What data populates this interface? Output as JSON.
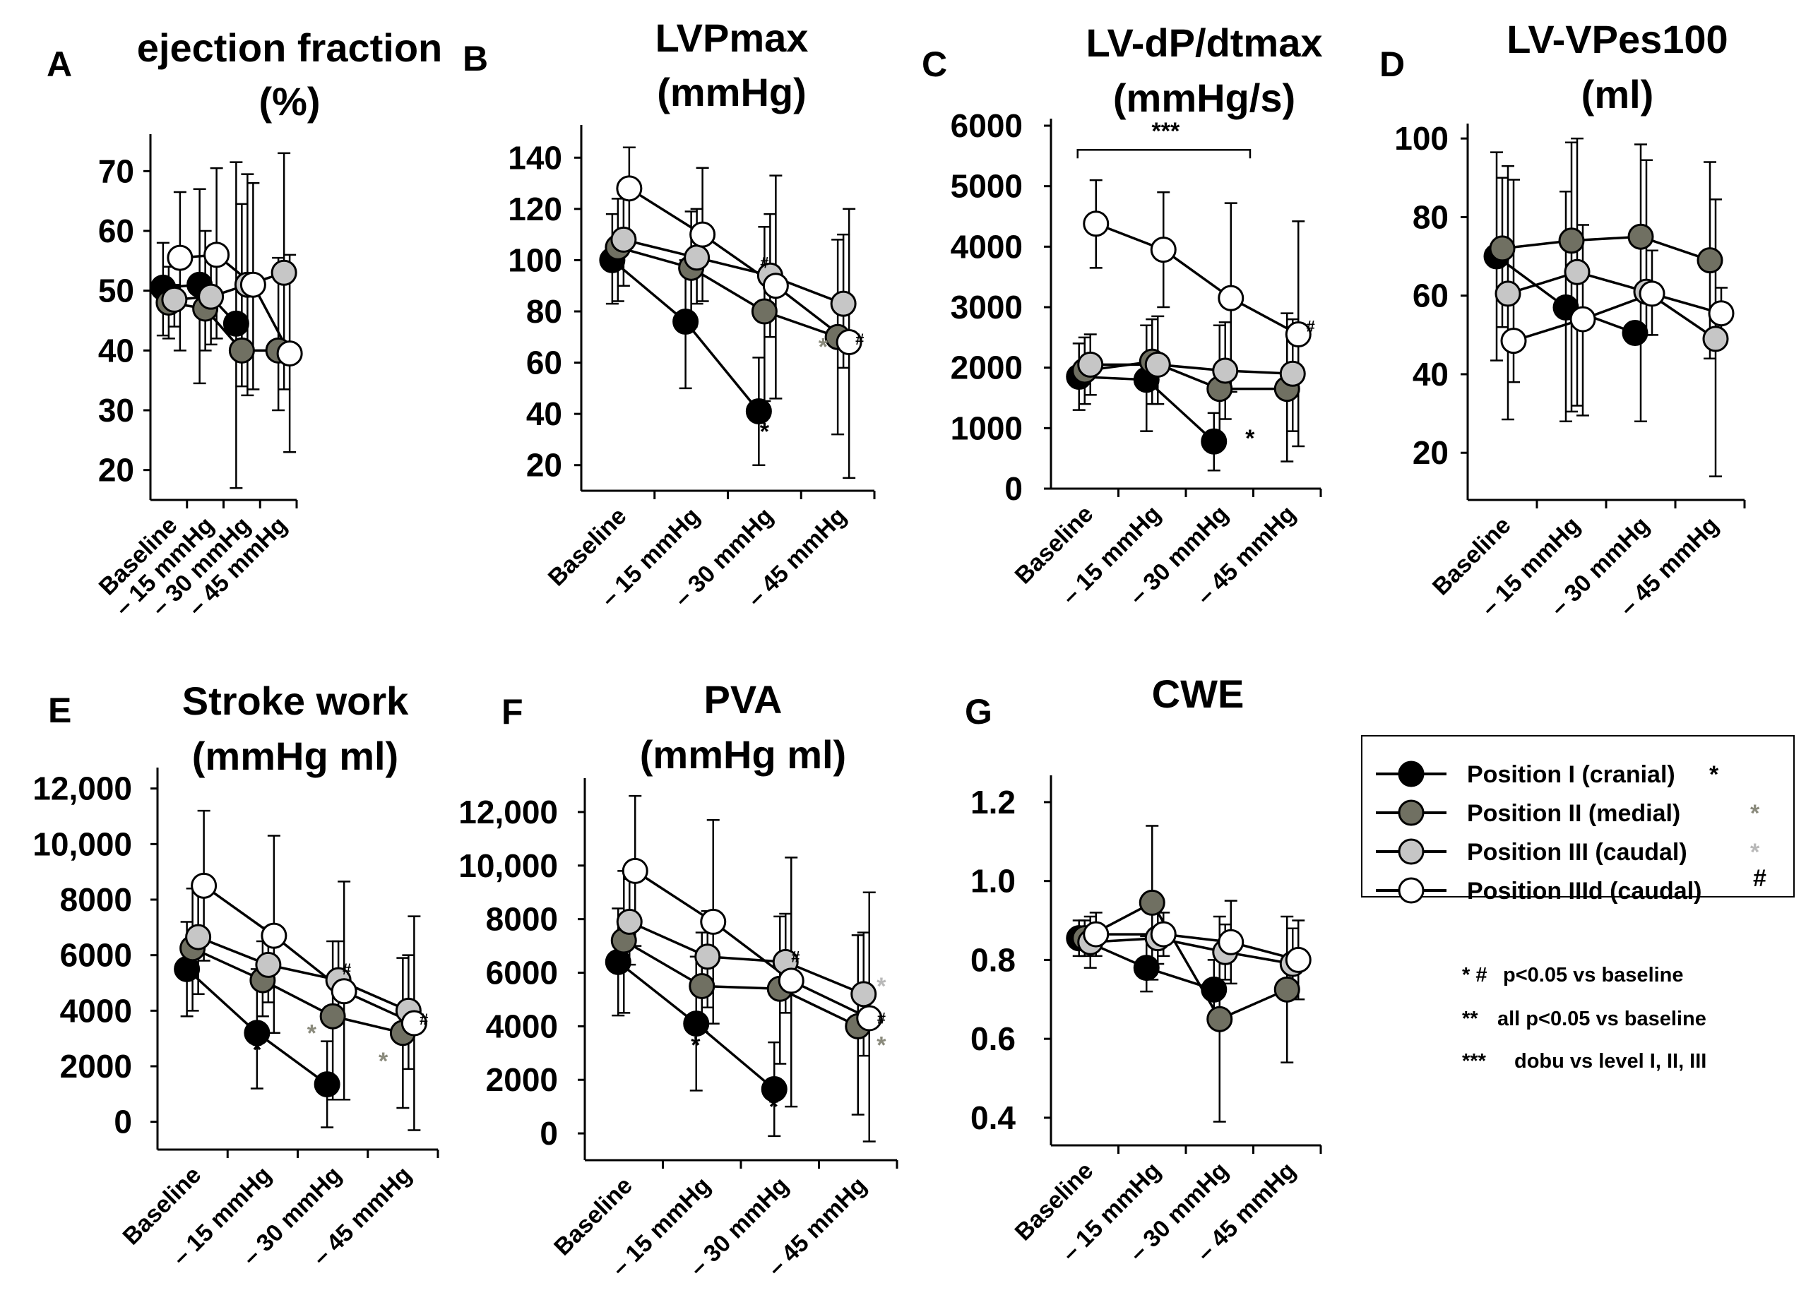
{
  "figure_legend": {
    "entries": [
      {
        "label": "Position I (cranial)",
        "symbol": "*",
        "fill": "#000000",
        "symbol_color": "#000000"
      },
      {
        "label": "Position II (medial)",
        "symbol": "*",
        "fill": "#707062",
        "symbol_color": "#8a8a7c"
      },
      {
        "label": "Position III (caudal)",
        "symbol": "*",
        "fill": "#c6c6c6",
        "symbol_color": "#b9b9b9"
      },
      {
        "label": "Position IIId (caudal)",
        "symbol": "#",
        "fill": "#ffffff",
        "symbol_color": "#000000"
      }
    ],
    "notes": [
      {
        "marker": "* #",
        "text": "p<0.05 vs baseline"
      },
      {
        "marker": "**",
        "text": "all p<0.05 vs baseline"
      },
      {
        "marker": "***",
        "text": "dobu vs level I, II, III"
      }
    ]
  },
  "chart_data": [
    {
      "panel": "A",
      "type": "line",
      "title": [
        "ejection fraction",
        "(%)"
      ],
      "categories": [
        "Baseline",
        "– 15 mmHg",
        "– 30 mmHg",
        "– 45 mmHg"
      ],
      "ylim": [
        15,
        75
      ],
      "yticks": [
        "70",
        "60",
        "50",
        "40",
        "30",
        "20"
      ],
      "ytick_values": [
        70,
        60,
        50,
        40,
        30,
        20
      ],
      "series": [
        {
          "name": "Position I (cranial)",
          "values": [
            50.5,
            51,
            44.5,
            null
          ],
          "err_hi": [
            58,
            67,
            71.5,
            null
          ],
          "err_lo": [
            42.5,
            34.5,
            17,
            null
          ]
        },
        {
          "name": "Position II (medial)",
          "values": [
            48,
            47,
            40,
            40
          ],
          "err_hi": [
            54,
            60,
            64.5,
            55.5
          ],
          "err_lo": [
            42,
            40,
            34,
            30
          ]
        },
        {
          "name": "Position III (caudal)",
          "values": [
            48.5,
            49,
            51,
            53
          ],
          "err_hi": [
            51,
            57,
            69.5,
            73
          ],
          "err_lo": [
            44,
            41,
            32.5,
            33.5
          ]
        },
        {
          "name": "Position IIId (caudal)",
          "values": [
            55.5,
            56,
            51,
            39.5
          ],
          "err_hi": [
            66.5,
            70.5,
            68,
            56
          ],
          "err_lo": [
            40,
            42,
            33.5,
            23
          ]
        }
      ],
      "annotations": []
    },
    {
      "panel": "B",
      "type": "line",
      "title": [
        "LVPmax",
        "(mmHg)"
      ],
      "categories": [
        "Baseline",
        "– 15 mmHg",
        "– 30 mmHg",
        "– 45 mmHg"
      ],
      "ylim": [
        10,
        150
      ],
      "yticks": [
        "140",
        "120",
        "100",
        "80",
        "60",
        "40",
        "20"
      ],
      "ytick_values": [
        140,
        120,
        100,
        80,
        60,
        40,
        20
      ],
      "series": [
        {
          "name": "Position I (cranial)",
          "values": [
            100,
            76,
            41,
            null
          ],
          "err_hi": [
            118,
            100,
            62,
            null
          ],
          "err_lo": [
            83,
            50,
            20,
            null
          ]
        },
        {
          "name": "Position II (medial)",
          "values": [
            105,
            97,
            80,
            70
          ],
          "err_hi": [
            124,
            119,
            113,
            108
          ],
          "err_lo": [
            84,
            74,
            45,
            32
          ]
        },
        {
          "name": "Position III (caudal)",
          "values": [
            108,
            101,
            94,
            83
          ],
          "err_hi": [
            126,
            120,
            118,
            110
          ],
          "err_lo": [
            90,
            83,
            70,
            58
          ]
        },
        {
          "name": "Position IIId (caudal)",
          "values": [
            128,
            110,
            90,
            68
          ],
          "err_hi": [
            144,
            136,
            133,
            120
          ],
          "err_lo": [
            110,
            84,
            46,
            15
          ]
        }
      ],
      "annotations": [
        {
          "text": "*",
          "color": "#000000",
          "x": 2,
          "y": 30
        },
        {
          "text": "#",
          "color": "#000000",
          "x": 2,
          "y": 97
        },
        {
          "text": "*",
          "color": "#8a8a7c",
          "x": 2.8,
          "y": 63
        },
        {
          "text": "#",
          "color": "#000000",
          "x": 3.3,
          "y": 67
        }
      ]
    },
    {
      "panel": "C",
      "type": "line",
      "title": [
        "LV-dP/dtmax",
        "(mmHg/s)"
      ],
      "categories": [
        "Baseline",
        "– 15 mmHg",
        "– 30 mmHg",
        "– 45 mmHg"
      ],
      "ylim": [
        0,
        6000
      ],
      "yticks": [
        "6000",
        "5000",
        "4000",
        "3000",
        "2000",
        "1000",
        "0"
      ],
      "ytick_values": [
        6000,
        5000,
        4000,
        3000,
        2000,
        1000,
        0
      ],
      "series": [
        {
          "name": "Position I (cranial)",
          "values": [
            1850,
            1800,
            780,
            null
          ],
          "err_hi": [
            2400,
            2700,
            1250,
            null
          ],
          "err_lo": [
            1300,
            950,
            300,
            null
          ]
        },
        {
          "name": "Position II (medial)",
          "values": [
            1950,
            2100,
            1650,
            1650
          ],
          "err_hi": [
            2500,
            2800,
            2700,
            2900
          ],
          "err_lo": [
            1400,
            1400,
            700,
            450
          ]
        },
        {
          "name": "Position III (caudal)",
          "values": [
            2050,
            2050,
            1950,
            1900
          ],
          "err_hi": [
            2550,
            2850,
            2750,
            2800
          ],
          "err_lo": [
            1550,
            1400,
            1150,
            950
          ]
        },
        {
          "name": "Position IIId (caudal)",
          "values": [
            4380,
            3950,
            3150,
            2550
          ],
          "err_hi": [
            5100,
            4900,
            4720,
            4420
          ],
          "err_lo": [
            3650,
            3000,
            1600,
            700
          ]
        }
      ],
      "annotations": [
        {
          "text": "*",
          "color": "#000000",
          "x": 2.45,
          "y": 700
        },
        {
          "text": "#",
          "color": "#000000",
          "x": 3.35,
          "y": 2600
        },
        {
          "text": "***",
          "color": "#000000",
          "x": 1.2,
          "y": 5780
        }
      ],
      "bracket": {
        "from": 0.0,
        "to": 2.4,
        "y": 5600
      }
    },
    {
      "panel": "D",
      "type": "line",
      "title": [
        "LV-VPes100",
        "(ml)"
      ],
      "categories": [
        "Baseline",
        "– 15 mmHg",
        "– 30 mmHg",
        "– 45 mmHg"
      ],
      "ylim": [
        8,
        102
      ],
      "yticks": [
        "100",
        "80",
        "60",
        "40",
        "20"
      ],
      "ytick_values": [
        100,
        80,
        60,
        40,
        20
      ],
      "series": [
        {
          "name": "Position I (cranial)",
          "values": [
            70,
            57,
            50.5,
            null
          ],
          "err_hi": [
            96.5,
            86.5,
            null,
            null
          ],
          "err_lo": [
            43.5,
            28,
            null,
            null
          ]
        },
        {
          "name": "Position II (medial)",
          "values": [
            72,
            74,
            75,
            69
          ],
          "err_hi": [
            90,
            99,
            98.5,
            94
          ],
          "err_lo": [
            52,
            30.5,
            28,
            44
          ]
        },
        {
          "name": "Position III (caudal)",
          "values": [
            60.5,
            66,
            61,
            49
          ],
          "err_hi": [
            93,
            100,
            94.5,
            84.5
          ],
          "err_lo": [
            28.5,
            32,
            50,
            14
          ]
        },
        {
          "name": "Position IIId (caudal)",
          "values": [
            48.5,
            54,
            60.5,
            55.5
          ],
          "err_hi": [
            89.5,
            78,
            71.5,
            62
          ],
          "err_lo": [
            38,
            29.5,
            50,
            49
          ]
        }
      ],
      "annotations": []
    },
    {
      "panel": "E",
      "type": "line",
      "title": [
        "Stroke work",
        "(mmHg ml)"
      ],
      "categories": [
        "Baseline",
        "– 15 mmHg",
        "– 30 mmHg",
        "– 45 mmHg"
      ],
      "ylim": [
        -1000,
        12500
      ],
      "yticks": [
        "12,000",
        "10,000",
        "8000",
        "6000",
        "4000",
        "2000",
        "0"
      ],
      "ytick_values": [
        12000,
        10000,
        8000,
        6000,
        4000,
        2000,
        0
      ],
      "series": [
        {
          "name": "Position I (cranial)",
          "values": [
            5500,
            3200,
            1350,
            null
          ],
          "err_hi": [
            7200,
            5500,
            2900,
            null
          ],
          "err_lo": [
            3800,
            1200,
            -200,
            null
          ]
        },
        {
          "name": "Position II (medial)",
          "values": [
            6250,
            5100,
            3800,
            3200
          ],
          "err_hi": [
            8400,
            6500,
            6500,
            5900
          ],
          "err_lo": [
            4000,
            3800,
            800,
            500
          ]
        },
        {
          "name": "Position III (caudal)",
          "values": [
            6650,
            5650,
            5100,
            4000
          ],
          "err_hi": [
            8600,
            7000,
            6500,
            6000
          ],
          "err_lo": [
            4600,
            4300,
            3700,
            1900
          ]
        },
        {
          "name": "Position IIId (caudal)",
          "values": [
            8500,
            6700,
            4700,
            3550
          ],
          "err_hi": [
            11200,
            10300,
            8650,
            7400
          ],
          "err_lo": [
            5800,
            3200,
            800,
            -300
          ]
        }
      ],
      "annotations": [
        {
          "text": "*",
          "color": "#000000",
          "x": 0.92,
          "y": 2300
        },
        {
          "text": "*",
          "color": "#000000",
          "x": 1.92,
          "y": 900
        },
        {
          "text": "*",
          "color": "#8a8a7c",
          "x": 1.7,
          "y": 2900
        },
        {
          "text": "#",
          "color": "#000000",
          "x": 2.2,
          "y": 5300
        },
        {
          "text": "*",
          "color": "#8a8a7c",
          "x": 2.72,
          "y": 1900
        },
        {
          "text": "#",
          "color": "#000000",
          "x": 3.3,
          "y": 3500
        }
      ]
    },
    {
      "panel": "F",
      "type": "line",
      "title": [
        "PVA",
        "(mmHg ml)"
      ],
      "categories": [
        "Baseline",
        "– 15 mmHg",
        "– 30 mmHg",
        "– 45 mmHg"
      ],
      "ylim": [
        -1000,
        13000
      ],
      "yticks": [
        "12,000",
        "10,000",
        "8000",
        "6000",
        "4000",
        "2000",
        "0"
      ],
      "ytick_values": [
        12000,
        10000,
        8000,
        6000,
        4000,
        2000,
        0
      ],
      "series": [
        {
          "name": "Position I (cranial)",
          "values": [
            6400,
            4100,
            1650,
            null
          ],
          "err_hi": [
            8400,
            6600,
            3400,
            null
          ],
          "err_lo": [
            4400,
            1600,
            -100,
            null
          ]
        },
        {
          "name": "Position II (medial)",
          "values": [
            7200,
            5500,
            5400,
            4000
          ],
          "err_hi": [
            9800,
            7500,
            8100,
            7400
          ],
          "err_lo": [
            4500,
            3800,
            2600,
            700
          ]
        },
        {
          "name": "Position III (caudal)",
          "values": [
            7900,
            6600,
            6400,
            5200
          ],
          "err_hi": [
            9500,
            8300,
            8200,
            7500
          ],
          "err_lo": [
            6300,
            4700,
            4500,
            2900
          ]
        },
        {
          "name": "Position IIId (caudal)",
          "values": [
            9800,
            7900,
            5700,
            4300
          ],
          "err_hi": [
            12600,
            11700,
            10300,
            9000
          ],
          "err_lo": [
            7000,
            4100,
            1000,
            -300
          ]
        }
      ],
      "annotations": [
        {
          "text": "*",
          "color": "#000000",
          "x": 0.92,
          "y": 3000
        },
        {
          "text": "*",
          "color": "#000000",
          "x": 1.92,
          "y": 700
        },
        {
          "text": "#",
          "color": "#000000",
          "x": 2.2,
          "y": 6400
        },
        {
          "text": "*",
          "color": "#b9b9b9",
          "x": 3.3,
          "y": 5200
        },
        {
          "text": "#",
          "color": "#000000",
          "x": 3.3,
          "y": 4100
        },
        {
          "text": "*",
          "color": "#8a8a7c",
          "x": 3.3,
          "y": 3000
        }
      ]
    },
    {
      "panel": "G",
      "type": "line",
      "title": [
        "CWE"
      ],
      "categories": [
        "Baseline",
        "– 15 mmHg",
        "– 30 mmHg",
        "– 45 mmHg"
      ],
      "ylim": [
        0.33,
        1.25
      ],
      "yticks": [
        "1.2",
        "1.0",
        "0.8",
        "0.6",
        "0.4"
      ],
      "ytick_values": [
        1.2,
        1.0,
        0.8,
        0.6,
        0.4
      ],
      "series": [
        {
          "name": "Position I (cranial)",
          "values": [
            0.855,
            0.78,
            0.725,
            null
          ],
          "err_hi": [
            0.9,
            0.86,
            0.8,
            null
          ],
          "err_lo": [
            0.81,
            0.72,
            0.65,
            null
          ]
        },
        {
          "name": "Position II (medial)",
          "values": [
            0.855,
            0.945,
            0.65,
            0.725
          ],
          "err_hi": [
            0.9,
            1.14,
            0.91,
            0.91
          ],
          "err_lo": [
            0.81,
            0.75,
            0.39,
            0.54
          ]
        },
        {
          "name": "Position III (caudal)",
          "values": [
            0.845,
            0.855,
            0.82,
            0.79
          ],
          "err_hi": [
            0.91,
            0.92,
            0.89,
            0.88
          ],
          "err_lo": [
            0.78,
            0.79,
            0.75,
            0.7
          ]
        },
        {
          "name": "Position IIId (caudal)",
          "values": [
            0.865,
            0.865,
            0.845,
            0.8
          ],
          "err_hi": [
            0.92,
            0.92,
            0.95,
            0.9
          ],
          "err_lo": [
            0.81,
            0.81,
            0.74,
            0.7
          ]
        }
      ],
      "annotations": []
    }
  ]
}
